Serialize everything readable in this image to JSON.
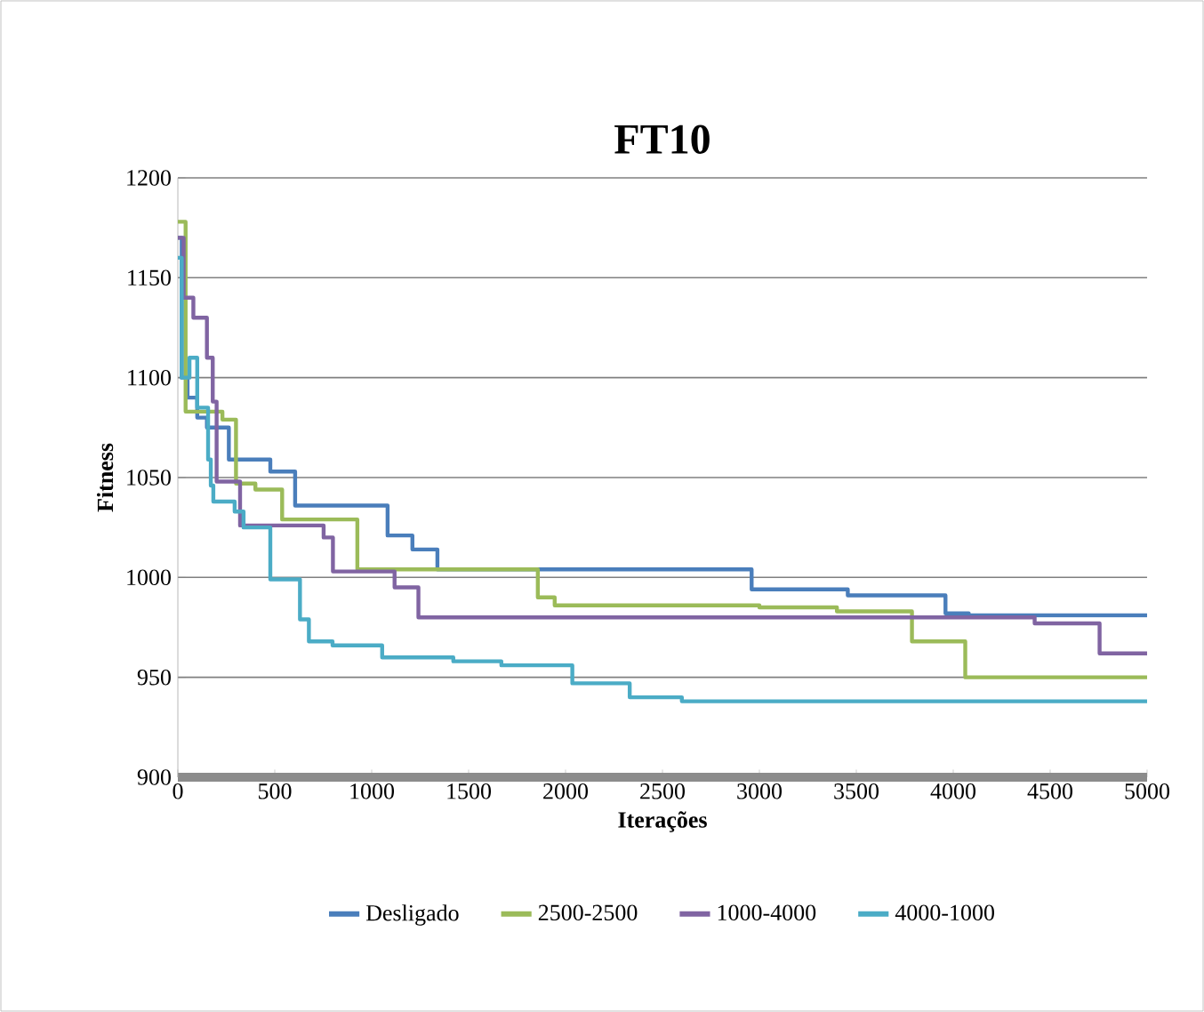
{
  "chart_data": {
    "type": "step",
    "title": "FT10",
    "xlabel": "Iterações",
    "ylabel": "Fitness",
    "xlim": [
      0,
      5000
    ],
    "ylim": [
      900,
      1200
    ],
    "xticks": [
      0,
      500,
      1000,
      1500,
      2000,
      2500,
      3000,
      3500,
      4000,
      4500,
      5000
    ],
    "yticks": [
      900,
      950,
      1000,
      1050,
      1100,
      1150,
      1200
    ],
    "grid": "y",
    "legend": "bottom",
    "series": [
      {
        "name": "Desligado",
        "color": "#4a7ebb",
        "x": [
          0,
          20,
          50,
          100,
          150,
          263,
          477,
          605,
          1082,
          1210,
          1339,
          2960,
          3456,
          3960,
          4080,
          5000
        ],
        "values": [
          1170,
          1100,
          1090,
          1080,
          1075,
          1059,
          1053,
          1036,
          1021,
          1014,
          1004,
          994,
          991,
          982,
          981,
          981
        ]
      },
      {
        "name": "2500-2500",
        "color": "#9bbb59",
        "x": [
          0,
          40,
          230,
          300,
          400,
          538,
          926,
          1857,
          1944,
          3000,
          3400,
          3787,
          4062,
          5000
        ],
        "values": [
          1178,
          1083,
          1079,
          1047,
          1044,
          1029,
          1004,
          990,
          986,
          985,
          983,
          968,
          950,
          950
        ]
      },
      {
        "name": "1000-4000",
        "color": "#8064a2",
        "x": [
          0,
          30,
          80,
          150,
          180,
          200,
          321,
          752,
          800,
          1118,
          1241,
          4420,
          4755,
          5000
        ],
        "values": [
          1170,
          1140,
          1130,
          1110,
          1088,
          1048,
          1026,
          1020,
          1003,
          995,
          980,
          977,
          962,
          962
        ]
      },
      {
        "name": "4000-1000",
        "color": "#4bacc6",
        "x": [
          0,
          20,
          60,
          100,
          156,
          170,
          183,
          293,
          339,
          477,
          630,
          676,
          798,
          1054,
          1421,
          1669,
          2035,
          2331,
          2600,
          5000
        ],
        "values": [
          1160,
          1100,
          1110,
          1085,
          1059,
          1046,
          1038,
          1033,
          1025,
          999,
          979,
          968,
          966,
          960,
          958,
          956,
          947,
          940,
          938,
          938
        ]
      }
    ]
  }
}
